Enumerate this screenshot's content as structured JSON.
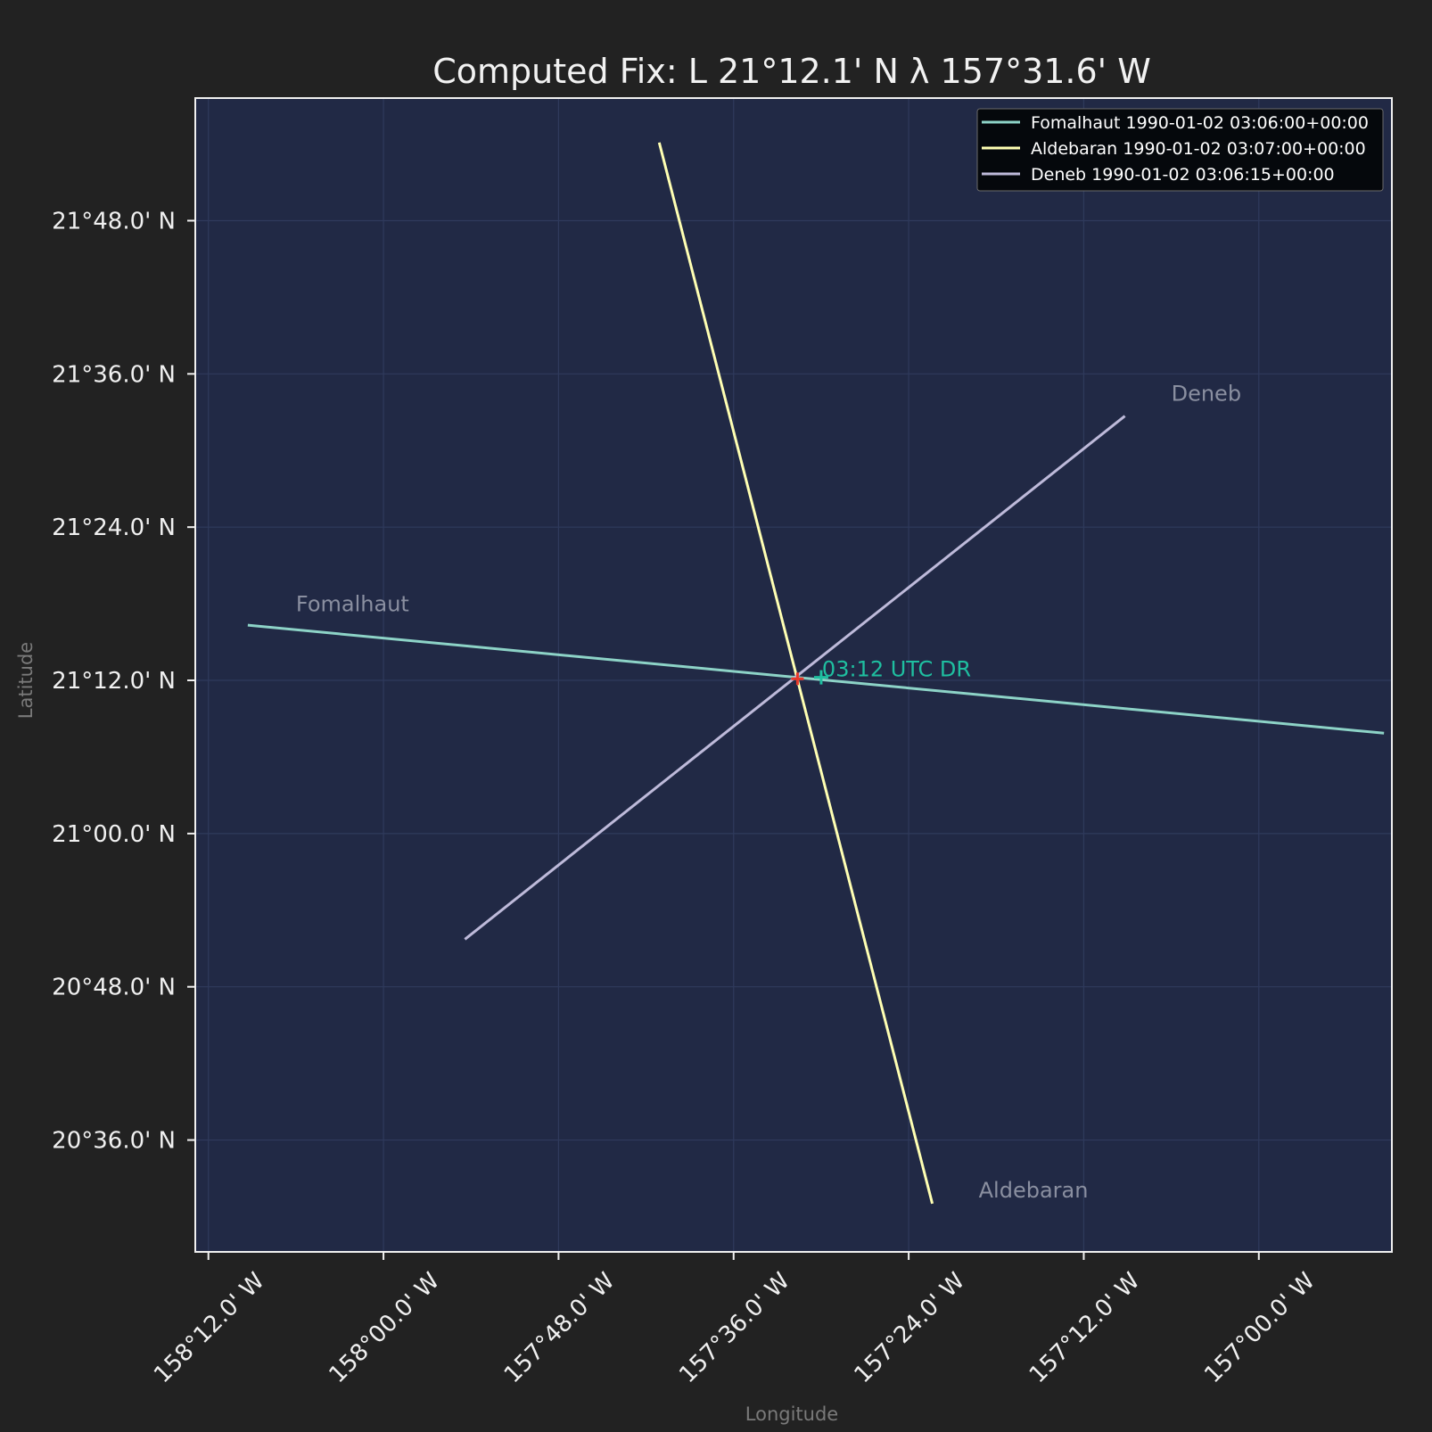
{
  "chart_data": {
    "type": "line",
    "title": "Computed Fix: L 21°12.1' N λ 157°31.6' W",
    "xlabel": "Longitude",
    "ylabel": "Latitude",
    "xlim": [
      -158.215,
      -156.848
    ],
    "ylim": [
      20.454,
      21.96
    ],
    "grid": true,
    "legend_position": "top-right",
    "x_ticks": [
      {
        "value": -158.2,
        "label": "158°12.0' W"
      },
      {
        "value": -158.0,
        "label": "158°00.0' W"
      },
      {
        "value": -157.8,
        "label": "157°48.0' W"
      },
      {
        "value": -157.6,
        "label": "157°36.0' W"
      },
      {
        "value": -157.4,
        "label": "157°24.0' W"
      },
      {
        "value": -157.2,
        "label": "157°12.0' W"
      },
      {
        "value": -157.0,
        "label": "157°00.0' W"
      }
    ],
    "y_ticks": [
      {
        "value": 20.6,
        "label": "20°36.0' N"
      },
      {
        "value": 20.8,
        "label": "20°48.0' N"
      },
      {
        "value": 21.0,
        "label": "21°00.0' N"
      },
      {
        "value": 21.2,
        "label": "21°12.0' N"
      },
      {
        "value": 21.4,
        "label": "21°24.0' N"
      },
      {
        "value": 21.6,
        "label": "21°36.0' N"
      },
      {
        "value": 21.8,
        "label": "21°48.0' N"
      }
    ],
    "series": [
      {
        "name": "Fomalhaut 1990-01-02 03:06:00+00:00",
        "label": "Fomalhaut",
        "color": "#8dd3c7",
        "x": [
          -158.155,
          -156.857
        ],
        "y": [
          21.272,
          21.131
        ],
        "label_at": {
          "x": -158.1,
          "y": 21.29
        }
      },
      {
        "name": "Aldebaran 1990-01-02 03:07:00+00:00",
        "label": "Aldebaran",
        "color": "#ffffb3",
        "x": [
          -157.685,
          -157.373
        ],
        "y": [
          21.902,
          20.517
        ],
        "label_at": {
          "x": -157.32,
          "y": 20.525
        }
      },
      {
        "name": "Deneb 1990-01-02 03:06:15+00:00",
        "label": "Deneb",
        "color": "#bebada",
        "x": [
          -157.907,
          -157.153
        ],
        "y": [
          20.862,
          21.545
        ],
        "label_at": {
          "x": -157.1,
          "y": 21.565
        }
      }
    ],
    "fix": {
      "x": -157.527,
      "y": 21.202,
      "color": "#e8392a"
    },
    "dr": {
      "x": -157.5,
      "y": 21.204,
      "label": "03:12 UTC DR",
      "color": "#1fbfa0"
    }
  }
}
